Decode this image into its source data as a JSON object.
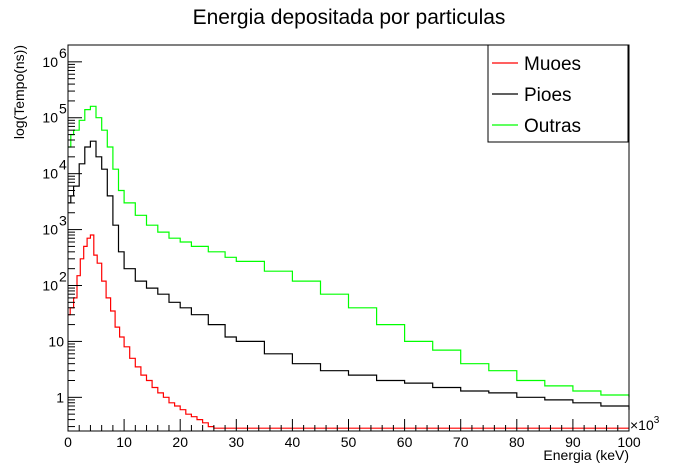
{
  "chart_data": {
    "type": "line",
    "title": "Energia depositada por particulas",
    "xlabel": "Energia (keV)",
    "ylabel": "log(Tempo(ns))",
    "x_multiplier": "×10",
    "x_multiplier_exp": "3",
    "xlim": [
      0,
      100
    ],
    "ylim": [
      0.25,
      2000000
    ],
    "y_scale": "log",
    "grid": false,
    "legend_position": "top-right",
    "x_ticks": [
      "0",
      "10",
      "20",
      "30",
      "40",
      "50",
      "60",
      "70",
      "80",
      "90",
      "100"
    ],
    "y_ticks": [
      {
        "value": 1,
        "label": "1"
      },
      {
        "value": 10,
        "label": "10"
      },
      {
        "value": 100,
        "label": "10",
        "exp": "2"
      },
      {
        "value": 1000,
        "label": "10",
        "exp": "3"
      },
      {
        "value": 10000,
        "label": "10",
        "exp": "4"
      },
      {
        "value": 100000,
        "label": "10",
        "exp": "5"
      },
      {
        "value": 1000000,
        "label": "10",
        "exp": "6"
      }
    ],
    "series": [
      {
        "name": "Muoes",
        "color": "#ff0000",
        "x": [
          0,
          0.4,
          1,
          1.6,
          2.2,
          2.8,
          3.4,
          4,
          4.6,
          5.2,
          6,
          6.8,
          7.6,
          8.4,
          9.2,
          10,
          11,
          12,
          13,
          14,
          15,
          16,
          17,
          18,
          19,
          20,
          21,
          22,
          23,
          24,
          25,
          26
        ],
        "y": [
          30,
          40,
          60,
          150,
          300,
          500,
          700,
          800,
          350,
          250,
          120,
          60,
          35,
          18,
          12,
          8,
          5,
          3.5,
          2.5,
          2,
          1.5,
          1.2,
          1,
          0.8,
          0.7,
          0.6,
          0.5,
          0.45,
          0.4,
          0.35,
          0.3,
          0.28
        ]
      },
      {
        "name": "Pioes",
        "color": "#000000",
        "x": [
          0,
          0.5,
          1,
          2,
          3,
          4,
          5,
          6,
          7,
          8,
          9,
          10,
          12,
          14,
          16,
          18,
          20,
          22,
          25,
          28,
          30,
          35,
          40,
          45,
          50,
          55,
          60,
          65,
          70,
          75,
          80,
          85,
          90,
          95,
          100
        ],
        "y": [
          3000,
          4000,
          6000,
          15000,
          30000,
          38000,
          20000,
          12000,
          4000,
          1200,
          400,
          200,
          120,
          90,
          70,
          50,
          40,
          30,
          20,
          12,
          10,
          6,
          4,
          3,
          2.5,
          2,
          1.8,
          1.5,
          1.3,
          1.2,
          1,
          0.9,
          0.8,
          0.7,
          0.6
        ]
      },
      {
        "name": "Outras",
        "color": "#00ff00",
        "x": [
          0,
          0.5,
          1,
          2,
          3,
          4,
          5,
          6,
          7,
          8,
          9,
          10,
          12,
          14,
          16,
          18,
          20,
          22,
          25,
          28,
          30,
          35,
          40,
          45,
          50,
          55,
          60,
          65,
          70,
          75,
          80,
          85,
          90,
          95,
          100
        ],
        "y": [
          30000,
          50000,
          60000,
          90000,
          140000,
          160000,
          100000,
          60000,
          30000,
          12000,
          5000,
          3000,
          1800,
          1200,
          900,
          700,
          600,
          500,
          400,
          320,
          270,
          180,
          120,
          70,
          40,
          20,
          10,
          7,
          4,
          3,
          2,
          1.6,
          1.3,
          1.1,
          1
        ]
      }
    ]
  }
}
